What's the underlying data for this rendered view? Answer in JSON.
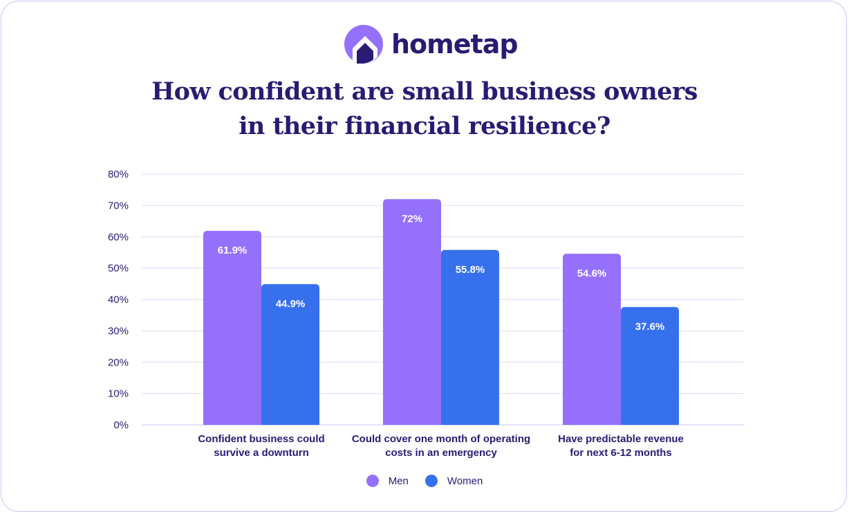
{
  "brand": {
    "name": "hometap",
    "logo_icon": "hometap-house-logo-icon"
  },
  "colors": {
    "men": "#9570fb",
    "women": "#3670ec",
    "text": "#2b1a72",
    "grid": "#dcd8f5"
  },
  "chart_data": {
    "type": "bar",
    "title_lines": [
      "How confident are small business owners",
      "in their financial resilience?"
    ],
    "categories": [
      [
        "Confident business could",
        "survive a downturn"
      ],
      [
        "Could cover one month of operating",
        "costs in an emergency"
      ],
      [
        "Have predictable revenue",
        "for next 6-12 months"
      ]
    ],
    "series": [
      {
        "name": "Men",
        "values": [
          61.9,
          72,
          54.6
        ],
        "labels": [
          "61.9%",
          "72%",
          "54.6%"
        ]
      },
      {
        "name": "Women",
        "values": [
          44.9,
          55.8,
          37.6
        ],
        "labels": [
          "44.9%",
          "55.8%",
          "37.6%"
        ]
      }
    ],
    "yticks": [
      "0%",
      "10%",
      "20%",
      "30%",
      "40%",
      "50%",
      "60%",
      "70%",
      "80%"
    ],
    "ylim": [
      0,
      80
    ],
    "grid": true,
    "legend_position": "bottom-center"
  }
}
